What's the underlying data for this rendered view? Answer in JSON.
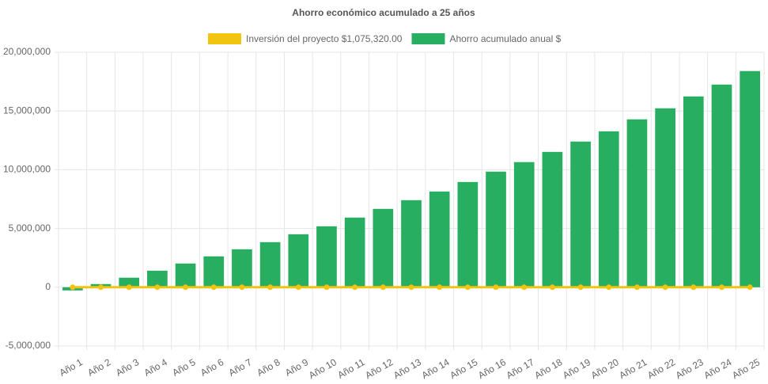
{
  "chart_data": {
    "type": "bar",
    "title": "Ahorro económico acumulado a 25 años",
    "categories": [
      "Año 1",
      "Año 2",
      "Año 3",
      "Año 4",
      "Año 5",
      "Año 6",
      "Año 7",
      "Año 8",
      "Año 9",
      "Año 10",
      "Año 11",
      "Año 12",
      "Año 13",
      "Año 14",
      "Año 15",
      "Año 16",
      "Año 17",
      "Año 18",
      "Año 19",
      "Año 20",
      "Año 21",
      "Año 22",
      "Año 23",
      "Año 24",
      "Año 25"
    ],
    "series": [
      {
        "name": "Inversión del proyecto $1,075,320.00",
        "type": "line",
        "color": "#f1c40f",
        "values": [
          0,
          0,
          0,
          0,
          0,
          0,
          0,
          0,
          0,
          0,
          0,
          0,
          0,
          0,
          0,
          0,
          0,
          0,
          0,
          0,
          0,
          0,
          0,
          0,
          0
        ]
      },
      {
        "name": "Ahorro acumulado anual $",
        "type": "bar",
        "color": "#27ae60",
        "values": [
          -270000,
          270000,
          810000,
          1410000,
          2020000,
          2630000,
          3230000,
          3840000,
          4510000,
          5190000,
          5930000,
          6670000,
          7410000,
          8150000,
          8960000,
          9840000,
          10650000,
          11520000,
          12400000,
          13270000,
          14290000,
          15230000,
          16240000,
          17250000,
          18400000
        ]
      }
    ],
    "ylim": [
      -5000000,
      20000000
    ],
    "yticks": [
      {
        "value": -5000000,
        "label": "-5,000,000"
      },
      0,
      {
        "value": 5000000,
        "label": "5,000,000"
      },
      {
        "value": 10000000,
        "label": "10,000,000"
      },
      {
        "value": 15000000,
        "label": "15,000,000"
      },
      {
        "value": 20000000,
        "label": "20,000,000"
      }
    ],
    "grid": true
  }
}
